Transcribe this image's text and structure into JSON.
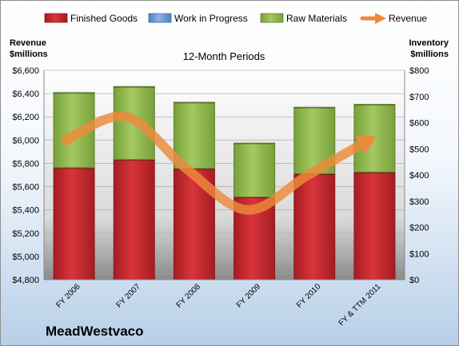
{
  "chart_data": {
    "type": "bar",
    "stacked": true,
    "title": "12-Month Periods",
    "company": "MeadWestvaco",
    "categories": [
      "FY 2006",
      "FY 2007",
      "FY 2008",
      "FY 2009",
      "FY 2010",
      "FY & TTM 2011"
    ],
    "left_axis": {
      "label_line1": "Revenue",
      "label_line2": "$millions",
      "min": 4800,
      "max": 6600,
      "step": 200,
      "prefix": "$"
    },
    "right_axis": {
      "label_line1": "Inventory",
      "label_line2": "$millions",
      "min": 0,
      "max": 800,
      "step": 100,
      "prefix": "$"
    },
    "series": [
      {
        "name": "Finished Goods",
        "axis": "right",
        "color": "#c0282d",
        "values": [
          428,
          459,
          425,
          316,
          405,
          411
        ]
      },
      {
        "name": "Work in Progress",
        "axis": "right",
        "color": "#6e9ad3",
        "values": [
          0,
          0,
          0,
          0,
          0,
          0
        ]
      },
      {
        "name": "Raw Materials",
        "axis": "right",
        "color": "#8fb84b",
        "values": [
          287,
          279,
          253,
          206,
          254,
          259
        ]
      },
      {
        "name": "Revenue",
        "axis": "left",
        "type": "line",
        "color": "#ee8a3a",
        "values": [
          6000,
          6200,
          5750,
          5400,
          5700,
          6000
        ]
      }
    ],
    "legend_position": "top",
    "grid": true
  }
}
